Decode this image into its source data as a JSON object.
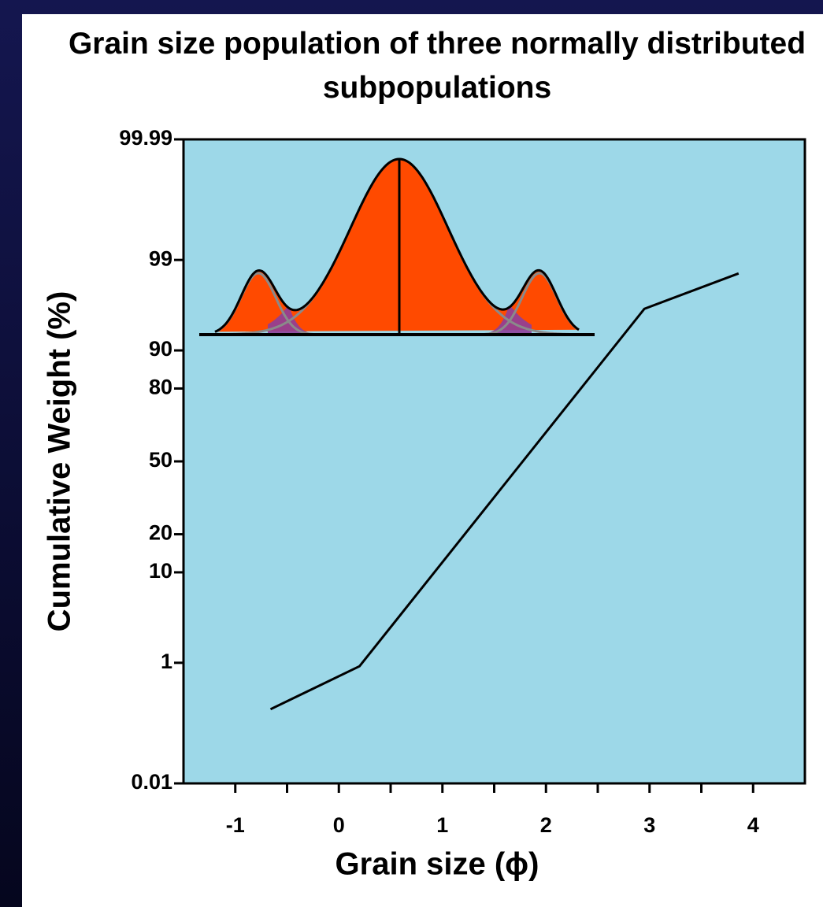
{
  "chart_data": {
    "type": "line",
    "title": "Grain size population of three normally distributed subpopulations",
    "x_label": "Grain size (ϕ)",
    "y_label": "Cumulative Weight (%)",
    "yscale": "probit",
    "x": [
      -0.66,
      0.2,
      2.95,
      3.86
    ],
    "series": [
      {
        "color": "#000000",
        "values": [
          0.21,
          0.9,
          96.1,
          98.5
        ]
      }
    ],
    "xlim": [
      -1.5,
      4.5
    ],
    "xticks": [
      -1,
      0,
      1,
      2,
      3,
      4
    ],
    "xminorticks": [
      -0.5,
      0.5,
      1.5,
      2.5,
      3.5
    ],
    "ylim": [
      0.01,
      99.99
    ],
    "yticks": [
      99.99,
      99,
      90,
      80,
      50,
      20,
      10,
      1,
      0.01
    ],
    "background": "#9dd8e8"
  }
}
